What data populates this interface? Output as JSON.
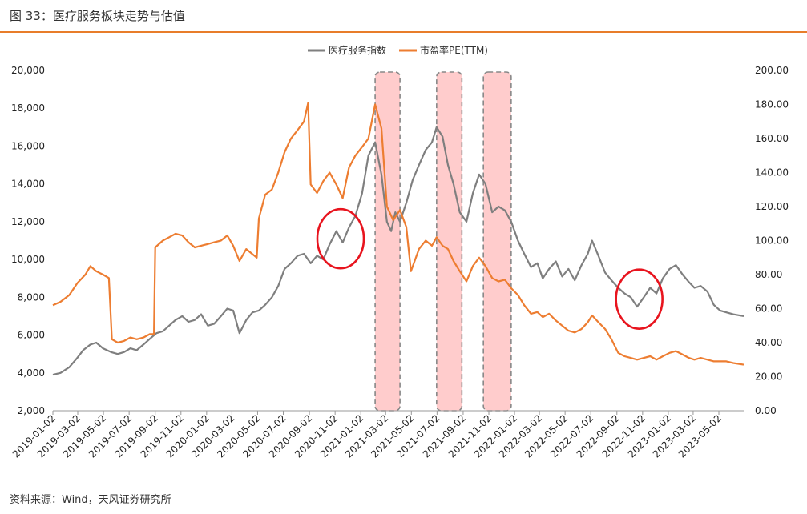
{
  "figure": {
    "title": "图 33：医疗服务板块走势与估值",
    "source": "资料来源：Wind，天风证券研究所"
  },
  "chart_data": {
    "type": "line",
    "x_tick_labels": [
      "2019-01-02",
      "2019-03-02",
      "2019-05-02",
      "2019-07-02",
      "2019-09-02",
      "2019-11-02",
      "2020-01-02",
      "2020-03-02",
      "2020-05-02",
      "2020-07-02",
      "2020-09-02",
      "2020-11-02",
      "2021-01-02",
      "2021-03-02",
      "2021-05-02",
      "2021-07-02",
      "2021-09-02",
      "2021-11-02",
      "2022-01-02",
      "2022-03-02",
      "2022-05-02",
      "2022-07-02",
      "2022-09-02",
      "2022-11-02",
      "2023-01-02",
      "2023-03-02",
      "2023-05-02"
    ],
    "x_range": [
      "2019-01-02",
      "2023-06-30"
    ],
    "y_left": {
      "min": 2000,
      "max": 20000,
      "step": 2000,
      "tick_labels": [
        "2,000",
        "4,000",
        "6,000",
        "8,000",
        "10,000",
        "12,000",
        "14,000",
        "16,000",
        "18,000",
        "20,000"
      ]
    },
    "y_right": {
      "min": 0,
      "max": 200,
      "step": 20,
      "tick_labels": [
        "0.00",
        "20.00",
        "40.00",
        "60.00",
        "80.00",
        "100.00",
        "120.00",
        "140.00",
        "160.00",
        "180.00",
        "200.00"
      ]
    },
    "legend_position": "top-center",
    "series": [
      {
        "name": "医疗服务指数",
        "axis": "left",
        "color": "#7f7f7f",
        "points": [
          [
            "2019-01-02",
            3900
          ],
          [
            "2019-01-20",
            4000
          ],
          [
            "2019-02-10",
            4300
          ],
          [
            "2019-03-01",
            4800
          ],
          [
            "2019-03-15",
            5200
          ],
          [
            "2019-04-01",
            5500
          ],
          [
            "2019-04-15",
            5600
          ],
          [
            "2019-05-01",
            5300
          ],
          [
            "2019-05-20",
            5100
          ],
          [
            "2019-06-05",
            5000
          ],
          [
            "2019-06-20",
            5100
          ],
          [
            "2019-07-05",
            5300
          ],
          [
            "2019-07-20",
            5200
          ],
          [
            "2019-08-05",
            5500
          ],
          [
            "2019-08-20",
            5800
          ],
          [
            "2019-09-05",
            6100
          ],
          [
            "2019-09-20",
            6200
          ],
          [
            "2019-10-05",
            6500
          ],
          [
            "2019-10-20",
            6800
          ],
          [
            "2019-11-05",
            7000
          ],
          [
            "2019-11-20",
            6700
          ],
          [
            "2019-12-05",
            6800
          ],
          [
            "2019-12-20",
            7100
          ],
          [
            "2020-01-05",
            6500
          ],
          [
            "2020-01-20",
            6600
          ],
          [
            "2020-02-05",
            7000
          ],
          [
            "2020-02-20",
            7400
          ],
          [
            "2020-03-05",
            7300
          ],
          [
            "2020-03-20",
            6100
          ],
          [
            "2020-04-05",
            6800
          ],
          [
            "2020-04-20",
            7200
          ],
          [
            "2020-05-05",
            7300
          ],
          [
            "2020-05-20",
            7600
          ],
          [
            "2020-06-05",
            8000
          ],
          [
            "2020-06-20",
            8600
          ],
          [
            "2020-07-05",
            9500
          ],
          [
            "2020-07-20",
            9800
          ],
          [
            "2020-08-05",
            10200
          ],
          [
            "2020-08-20",
            10300
          ],
          [
            "2020-09-05",
            9800
          ],
          [
            "2020-09-20",
            10200
          ],
          [
            "2020-10-05",
            10000
          ],
          [
            "2020-10-20",
            10800
          ],
          [
            "2020-11-05",
            11500
          ],
          [
            "2020-11-20",
            10900
          ],
          [
            "2020-12-05",
            11700
          ],
          [
            "2020-12-20",
            12300
          ],
          [
            "2021-01-05",
            13500
          ],
          [
            "2021-01-20",
            15500
          ],
          [
            "2021-02-05",
            16200
          ],
          [
            "2021-02-20",
            14500
          ],
          [
            "2021-03-05",
            12000
          ],
          [
            "2021-03-15",
            11500
          ],
          [
            "2021-03-25",
            12500
          ],
          [
            "2021-04-05",
            12000
          ],
          [
            "2021-04-20",
            13000
          ],
          [
            "2021-05-05",
            14200
          ],
          [
            "2021-05-20",
            15000
          ],
          [
            "2021-06-05",
            15800
          ],
          [
            "2021-06-20",
            16200
          ],
          [
            "2021-07-01",
            17000
          ],
          [
            "2021-07-15",
            16500
          ],
          [
            "2021-07-28",
            15000
          ],
          [
            "2021-08-10",
            14000
          ],
          [
            "2021-08-25",
            12500
          ],
          [
            "2021-09-10",
            12000
          ],
          [
            "2021-09-25",
            13500
          ],
          [
            "2021-10-10",
            14500
          ],
          [
            "2021-10-25",
            14000
          ],
          [
            "2021-11-10",
            12500
          ],
          [
            "2021-11-25",
            12800
          ],
          [
            "2021-12-10",
            12600
          ],
          [
            "2021-12-25",
            12000
          ],
          [
            "2022-01-10",
            11000
          ],
          [
            "2022-01-25",
            10300
          ],
          [
            "2022-02-10",
            9600
          ],
          [
            "2022-02-25",
            9800
          ],
          [
            "2022-03-10",
            9000
          ],
          [
            "2022-03-25",
            9500
          ],
          [
            "2022-04-10",
            9900
          ],
          [
            "2022-04-25",
            9100
          ],
          [
            "2022-05-10",
            9500
          ],
          [
            "2022-05-25",
            8900
          ],
          [
            "2022-06-10",
            9700
          ],
          [
            "2022-06-25",
            10300
          ],
          [
            "2022-07-05",
            11000
          ],
          [
            "2022-07-20",
            10200
          ],
          [
            "2022-08-05",
            9300
          ],
          [
            "2022-08-20",
            8900
          ],
          [
            "2022-09-05",
            8500
          ],
          [
            "2022-09-20",
            8200
          ],
          [
            "2022-10-05",
            8000
          ],
          [
            "2022-10-20",
            7500
          ],
          [
            "2022-11-05",
            8000
          ],
          [
            "2022-11-20",
            8500
          ],
          [
            "2022-12-05",
            8200
          ],
          [
            "2022-12-20",
            9000
          ],
          [
            "2023-01-05",
            9500
          ],
          [
            "2023-01-20",
            9700
          ],
          [
            "2023-02-05",
            9200
          ],
          [
            "2023-02-20",
            8800
          ],
          [
            "2023-03-05",
            8500
          ],
          [
            "2023-03-20",
            8600
          ],
          [
            "2023-04-05",
            8300
          ],
          [
            "2023-04-20",
            7600
          ],
          [
            "2023-05-05",
            7300
          ],
          [
            "2023-05-20",
            7200
          ],
          [
            "2023-06-05",
            7100
          ],
          [
            "2023-06-30",
            7000
          ]
        ]
      },
      {
        "name": "市盈率PE(TTM)",
        "axis": "right",
        "color": "#ed7d31",
        "points": [
          [
            "2019-01-02",
            62
          ],
          [
            "2019-01-20",
            64
          ],
          [
            "2019-02-10",
            68
          ],
          [
            "2019-03-01",
            75
          ],
          [
            "2019-03-20",
            80
          ],
          [
            "2019-04-01",
            85
          ],
          [
            "2019-04-15",
            82
          ],
          [
            "2019-05-01",
            80
          ],
          [
            "2019-05-15",
            78
          ],
          [
            "2019-05-22",
            42
          ],
          [
            "2019-06-05",
            40
          ],
          [
            "2019-06-20",
            41
          ],
          [
            "2019-07-05",
            43
          ],
          [
            "2019-07-20",
            42
          ],
          [
            "2019-08-05",
            43
          ],
          [
            "2019-08-20",
            45
          ],
          [
            "2019-08-30",
            45
          ],
          [
            "2019-09-02",
            96
          ],
          [
            "2019-09-20",
            100
          ],
          [
            "2019-10-05",
            102
          ],
          [
            "2019-10-20",
            104
          ],
          [
            "2019-11-05",
            103
          ],
          [
            "2019-11-20",
            99
          ],
          [
            "2019-12-05",
            96
          ],
          [
            "2019-12-20",
            97
          ],
          [
            "2020-01-05",
            98
          ],
          [
            "2020-01-20",
            99
          ],
          [
            "2020-02-05",
            100
          ],
          [
            "2020-02-20",
            103
          ],
          [
            "2020-03-05",
            97
          ],
          [
            "2020-03-20",
            88
          ],
          [
            "2020-04-05",
            95
          ],
          [
            "2020-04-20",
            92
          ],
          [
            "2020-04-30",
            90
          ],
          [
            "2020-05-05",
            113
          ],
          [
            "2020-05-20",
            127
          ],
          [
            "2020-06-05",
            130
          ],
          [
            "2020-06-20",
            140
          ],
          [
            "2020-07-05",
            152
          ],
          [
            "2020-07-20",
            160
          ],
          [
            "2020-08-05",
            165
          ],
          [
            "2020-08-20",
            170
          ],
          [
            "2020-08-30",
            181
          ],
          [
            "2020-09-05",
            133
          ],
          [
            "2020-09-20",
            128
          ],
          [
            "2020-10-05",
            135
          ],
          [
            "2020-10-20",
            140
          ],
          [
            "2020-11-05",
            133
          ],
          [
            "2020-11-20",
            125
          ],
          [
            "2020-12-05",
            143
          ],
          [
            "2020-12-20",
            150
          ],
          [
            "2021-01-05",
            155
          ],
          [
            "2021-01-20",
            160
          ],
          [
            "2021-02-05",
            180
          ],
          [
            "2021-02-20",
            166
          ],
          [
            "2021-03-05",
            120
          ],
          [
            "2021-03-20",
            112
          ],
          [
            "2021-04-05",
            118
          ],
          [
            "2021-04-20",
            108
          ],
          [
            "2021-05-01",
            82
          ],
          [
            "2021-05-20",
            95
          ],
          [
            "2021-06-05",
            100
          ],
          [
            "2021-06-20",
            97
          ],
          [
            "2021-07-01",
            102
          ],
          [
            "2021-07-15",
            97
          ],
          [
            "2021-07-28",
            95
          ],
          [
            "2021-08-10",
            88
          ],
          [
            "2021-08-25",
            82
          ],
          [
            "2021-09-10",
            76
          ],
          [
            "2021-09-25",
            85
          ],
          [
            "2021-10-10",
            90
          ],
          [
            "2021-10-25",
            85
          ],
          [
            "2021-11-10",
            78
          ],
          [
            "2021-11-25",
            76
          ],
          [
            "2021-12-10",
            77
          ],
          [
            "2021-12-25",
            72
          ],
          [
            "2022-01-10",
            68
          ],
          [
            "2022-01-25",
            62
          ],
          [
            "2022-02-10",
            57
          ],
          [
            "2022-02-25",
            58
          ],
          [
            "2022-03-10",
            55
          ],
          [
            "2022-03-25",
            57
          ],
          [
            "2022-04-10",
            53
          ],
          [
            "2022-04-25",
            50
          ],
          [
            "2022-05-10",
            47
          ],
          [
            "2022-05-25",
            46
          ],
          [
            "2022-06-10",
            48
          ],
          [
            "2022-06-25",
            52
          ],
          [
            "2022-07-05",
            56
          ],
          [
            "2022-07-20",
            52
          ],
          [
            "2022-08-05",
            48
          ],
          [
            "2022-08-20",
            42
          ],
          [
            "2022-09-05",
            34
          ],
          [
            "2022-09-20",
            32
          ],
          [
            "2022-10-05",
            31
          ],
          [
            "2022-10-20",
            30
          ],
          [
            "2022-11-05",
            31
          ],
          [
            "2022-11-20",
            32
          ],
          [
            "2022-12-05",
            30
          ],
          [
            "2022-12-20",
            32
          ],
          [
            "2023-01-05",
            34
          ],
          [
            "2023-01-20",
            35
          ],
          [
            "2023-02-05",
            33
          ],
          [
            "2023-02-20",
            31
          ],
          [
            "2023-03-05",
            30
          ],
          [
            "2023-03-20",
            31
          ],
          [
            "2023-04-05",
            30
          ],
          [
            "2023-04-20",
            29
          ],
          [
            "2023-05-05",
            29
          ],
          [
            "2023-05-20",
            29
          ],
          [
            "2023-06-05",
            28
          ],
          [
            "2023-06-30",
            27
          ]
        ]
      }
    ],
    "highlight_bands": [
      {
        "start": "2021-02-05",
        "end": "2021-04-05",
        "fill": "#ffcccc",
        "border": "#888888"
      },
      {
        "start": "2021-07-01",
        "end": "2021-08-30",
        "fill": "#ffcccc",
        "border": "#888888"
      },
      {
        "start": "2021-10-20",
        "end": "2021-12-25",
        "fill": "#ffcccc",
        "border": "#888888"
      }
    ],
    "circle_annotations": [
      {
        "x": "2020-11-15",
        "y": 11100,
        "axis": "left",
        "color": "#e8141e"
      },
      {
        "x": "2022-10-25",
        "y": 7900,
        "axis": "left",
        "color": "#e8141e"
      }
    ]
  }
}
